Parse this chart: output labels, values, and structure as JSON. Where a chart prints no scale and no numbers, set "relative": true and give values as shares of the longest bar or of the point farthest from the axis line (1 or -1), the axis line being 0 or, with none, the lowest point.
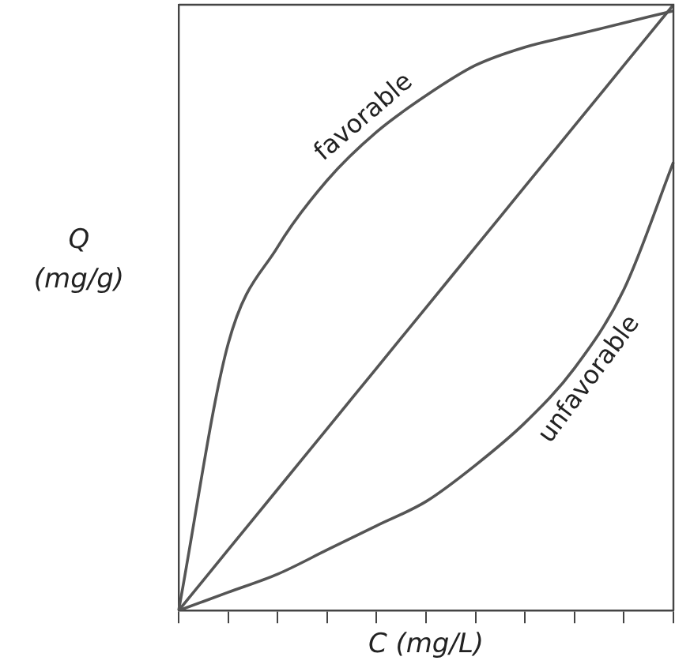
{
  "chart_data": {
    "type": "line",
    "relative": true,
    "xlabel": "C (mg/L)",
    "ylabel": "Q\n(mg/g)",
    "categories": [
      null,
      null,
      null,
      null,
      null,
      null,
      null,
      null,
      null,
      null,
      null
    ],
    "legend": false,
    "grid": false,
    "marker": "none",
    "tick_labels": false,
    "series": [
      {
        "name": "favorable",
        "color": "#555555",
        "values": [
          0,
          0.44,
          0.6,
          0.71,
          0.79,
          0.85,
          0.9,
          0.93,
          0.95,
          0.97,
          0.99
        ]
      },
      {
        "color": "#555555",
        "values": [
          0,
          0.1,
          0.2,
          0.3,
          0.4,
          0.5,
          0.6,
          0.7,
          0.8,
          0.9,
          1
        ]
      },
      {
        "name": "unfavorable",
        "color": "#555555",
        "values": [
          0,
          0.03,
          0.06,
          0.1,
          0.14,
          0.18,
          0.24,
          0.31,
          0.4,
          0.53,
          0.74
        ]
      }
    ]
  }
}
